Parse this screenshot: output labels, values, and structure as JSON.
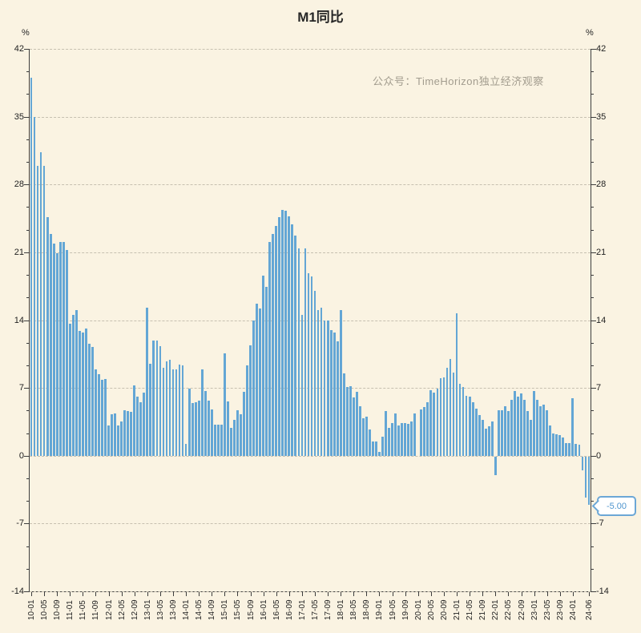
{
  "title": "M1同比",
  "watermark": "公众号：TimeHorizon独立经济观察",
  "y_axis": {
    "unit": "%"
  },
  "annotation": {
    "label": "-5.00"
  },
  "colors": {
    "background": "#FAF3E2",
    "bar": "#63A6D5",
    "grid": "#C6C0B0",
    "axis": "#3D3D3D",
    "tick_text": "#222222",
    "watermark": "#A29C8E",
    "callout_border": "#6CA7D6",
    "callout_text": "#4F95CE"
  },
  "chart_data": {
    "type": "bar",
    "title": "M1同比",
    "ylabel": "%",
    "ylim": [
      -14,
      42
    ],
    "yticks": [
      42,
      35,
      28,
      21,
      14,
      7,
      0,
      -7,
      -14
    ],
    "grid": "horizontal dashed",
    "legend_position": "none",
    "x_tick_rule": "label every 4th month starting 10-01, plus final bar 24-06",
    "last_value_label": "-5.00",
    "x": [
      "10-01",
      "10-02",
      "10-03",
      "10-04",
      "10-05",
      "10-06",
      "10-07",
      "10-08",
      "10-09",
      "10-10",
      "10-11",
      "10-12",
      "11-01",
      "11-02",
      "11-03",
      "11-04",
      "11-05",
      "11-06",
      "11-07",
      "11-08",
      "11-09",
      "11-10",
      "11-11",
      "11-12",
      "12-01",
      "12-02",
      "12-03",
      "12-04",
      "12-05",
      "12-06",
      "12-07",
      "12-08",
      "12-09",
      "12-10",
      "12-11",
      "12-12",
      "13-01",
      "13-02",
      "13-03",
      "13-04",
      "13-05",
      "13-06",
      "13-07",
      "13-08",
      "13-09",
      "13-10",
      "13-11",
      "13-12",
      "14-01",
      "14-02",
      "14-03",
      "14-04",
      "14-05",
      "14-06",
      "14-07",
      "14-08",
      "14-09",
      "14-10",
      "14-11",
      "14-12",
      "15-01",
      "15-02",
      "15-03",
      "15-04",
      "15-05",
      "15-06",
      "15-07",
      "15-08",
      "15-09",
      "15-10",
      "15-11",
      "15-12",
      "16-01",
      "16-02",
      "16-03",
      "16-04",
      "16-05",
      "16-06",
      "16-07",
      "16-08",
      "16-09",
      "16-10",
      "16-11",
      "16-12",
      "17-01",
      "17-02",
      "17-03",
      "17-04",
      "17-05",
      "17-06",
      "17-07",
      "17-08",
      "17-09",
      "17-10",
      "17-11",
      "17-12",
      "18-01",
      "18-02",
      "18-03",
      "18-04",
      "18-05",
      "18-06",
      "18-07",
      "18-08",
      "18-09",
      "18-10",
      "18-11",
      "18-12",
      "19-01",
      "19-02",
      "19-03",
      "19-04",
      "19-05",
      "19-06",
      "19-07",
      "19-08",
      "19-09",
      "19-10",
      "19-11",
      "19-12",
      "20-01",
      "20-02",
      "20-03",
      "20-04",
      "20-05",
      "20-06",
      "20-07",
      "20-08",
      "20-09",
      "20-10",
      "20-11",
      "20-12",
      "21-01",
      "21-02",
      "21-03",
      "21-04",
      "21-05",
      "21-06",
      "21-07",
      "21-08",
      "21-09",
      "21-10",
      "21-11",
      "21-12",
      "22-01",
      "22-02",
      "22-03",
      "22-04",
      "22-05",
      "22-06",
      "22-07",
      "22-08",
      "22-09",
      "22-10",
      "22-11",
      "22-12",
      "23-01",
      "23-02",
      "23-03",
      "23-04",
      "23-05",
      "23-06",
      "23-07",
      "23-08",
      "23-09",
      "23-10",
      "23-11",
      "23-12",
      "24-01",
      "24-02",
      "24-03",
      "24-04",
      "24-05",
      "24-06"
    ],
    "values": [
      39.0,
      35.0,
      29.9,
      31.3,
      29.9,
      24.6,
      22.9,
      21.9,
      20.9,
      22.1,
      22.1,
      21.2,
      13.6,
      14.5,
      15.0,
      12.9,
      12.7,
      13.1,
      11.6,
      11.2,
      8.9,
      8.4,
      7.8,
      7.9,
      3.1,
      4.3,
      4.4,
      3.1,
      3.5,
      4.7,
      4.6,
      4.5,
      7.3,
      6.1,
      5.5,
      6.5,
      15.3,
      9.5,
      11.9,
      11.9,
      11.3,
      9.1,
      9.7,
      9.9,
      8.9,
      8.9,
      9.4,
      9.3,
      1.2,
      6.9,
      5.4,
      5.5,
      5.7,
      8.9,
      6.7,
      5.7,
      4.8,
      3.2,
      3.2,
      3.2,
      10.6,
      5.6,
      2.9,
      3.7,
      4.7,
      4.3,
      6.6,
      9.3,
      11.4,
      14.0,
      15.7,
      15.2,
      18.6,
      17.4,
      22.1,
      22.9,
      23.7,
      24.6,
      25.4,
      25.3,
      24.7,
      23.9,
      22.7,
      21.4,
      14.5,
      21.4,
      18.8,
      18.5,
      17.0,
      15.0,
      15.3,
      14.0,
      14.0,
      13.0,
      12.7,
      11.8,
      15.0,
      8.5,
      7.1,
      7.2,
      6.0,
      6.6,
      5.1,
      3.9,
      4.0,
      2.7,
      1.5,
      1.5,
      0.4,
      2.0,
      4.6,
      2.9,
      3.4,
      4.4,
      3.1,
      3.4,
      3.4,
      3.3,
      3.5,
      4.4,
      0.0,
      4.8,
      5.0,
      5.5,
      6.8,
      6.5,
      6.9,
      8.0,
      8.1,
      9.1,
      10.0,
      8.6,
      14.7,
      7.4,
      7.1,
      6.2,
      6.1,
      5.5,
      4.9,
      4.2,
      3.7,
      2.8,
      3.0,
      3.5,
      -1.9,
      4.7,
      4.7,
      5.1,
      4.6,
      5.8,
      6.7,
      6.1,
      6.4,
      5.8,
      4.6,
      3.7,
      6.7,
      5.8,
      5.1,
      5.3,
      4.7,
      3.1,
      2.3,
      2.2,
      2.1,
      1.9,
      1.3,
      1.3,
      5.9,
      1.2,
      1.1,
      -1.4,
      -4.2,
      -5.0
    ]
  }
}
